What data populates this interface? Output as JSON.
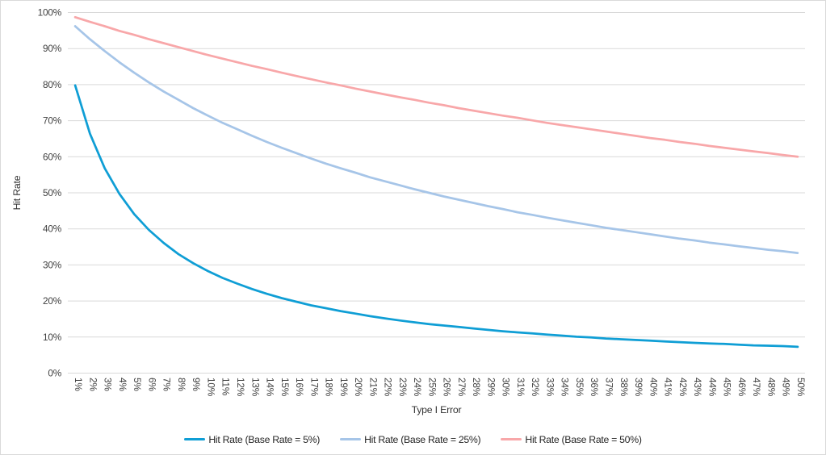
{
  "chart_data": {
    "type": "line",
    "title": "",
    "xlabel": "Type I Error",
    "ylabel": "Hit Rate",
    "ylim": [
      0,
      100
    ],
    "grid": true,
    "legend_position": "bottom",
    "grid_color": "#d9d9d9",
    "tick_text_color": "#404040",
    "axis_title_color": "#333333",
    "categories": [
      "1%",
      "2%",
      "3%",
      "4%",
      "5%",
      "6%",
      "7%",
      "8%",
      "9%",
      "10%",
      "11%",
      "12%",
      "13%",
      "14%",
      "15%",
      "16%",
      "17%",
      "18%",
      "19%",
      "20%",
      "21%",
      "22%",
      "23%",
      "24%",
      "25%",
      "26%",
      "27%",
      "28%",
      "29%",
      "30%",
      "31%",
      "32%",
      "33%",
      "34%",
      "35%",
      "36%",
      "37%",
      "38%",
      "39%",
      "40%",
      "41%",
      "42%",
      "43%",
      "44%",
      "45%",
      "46%",
      "47%",
      "48%",
      "49%",
      "50%"
    ],
    "y_tick_labels": [
      "0%",
      "10%",
      "20%",
      "30%",
      "40%",
      "50%",
      "60%",
      "70%",
      "80%",
      "90%",
      "100%"
    ],
    "series": [
      {
        "name": "Hit Rate (Base Rate = 5%)",
        "color": "#0f9ed5",
        "values": [
          79.8,
          66.4,
          56.8,
          49.7,
          44.1,
          39.7,
          36.1,
          33.0,
          30.5,
          28.3,
          26.4,
          24.8,
          23.3,
          22.0,
          20.8,
          19.8,
          18.8,
          18.0,
          17.2,
          16.5,
          15.8,
          15.2,
          14.6,
          14.1,
          13.6,
          13.2,
          12.8,
          12.4,
          12.0,
          11.6,
          11.3,
          11.0,
          10.7,
          10.4,
          10.1,
          9.9,
          9.6,
          9.4,
          9.2,
          9.0,
          8.8,
          8.6,
          8.4,
          8.2,
          8.1,
          7.9,
          7.7,
          7.6,
          7.5,
          7.3
        ]
      },
      {
        "name": "Hit Rate (Base Rate = 25%)",
        "color": "#a6c5e8",
        "values": [
          96.2,
          92.6,
          89.3,
          86.2,
          83.3,
          80.6,
          78.1,
          75.8,
          73.5,
          71.4,
          69.4,
          67.6,
          65.8,
          64.1,
          62.5,
          61.0,
          59.5,
          58.1,
          56.8,
          55.6,
          54.3,
          53.2,
          52.1,
          51.0,
          50.0,
          49.0,
          48.1,
          47.2,
          46.3,
          45.5,
          44.6,
          43.9,
          43.1,
          42.4,
          41.7,
          41.0,
          40.3,
          39.7,
          39.1,
          38.5,
          37.9,
          37.3,
          36.8,
          36.2,
          35.7,
          35.2,
          34.7,
          34.2,
          33.8,
          33.3
        ]
      },
      {
        "name": "Hit Rate (Base Rate = 50%)",
        "color": "#f8a7a9",
        "values": [
          98.7,
          97.4,
          96.2,
          94.9,
          93.8,
          92.6,
          91.5,
          90.4,
          89.3,
          88.2,
          87.2,
          86.2,
          85.2,
          84.3,
          83.3,
          82.4,
          81.5,
          80.6,
          79.8,
          78.9,
          78.1,
          77.3,
          76.5,
          75.8,
          75.0,
          74.3,
          73.5,
          72.8,
          72.1,
          71.4,
          70.8,
          70.1,
          69.4,
          68.8,
          68.2,
          67.6,
          67.0,
          66.4,
          65.8,
          65.2,
          64.7,
          64.1,
          63.6,
          63.0,
          62.5,
          62.0,
          61.5,
          61.0,
          60.5,
          60.0
        ]
      }
    ]
  }
}
